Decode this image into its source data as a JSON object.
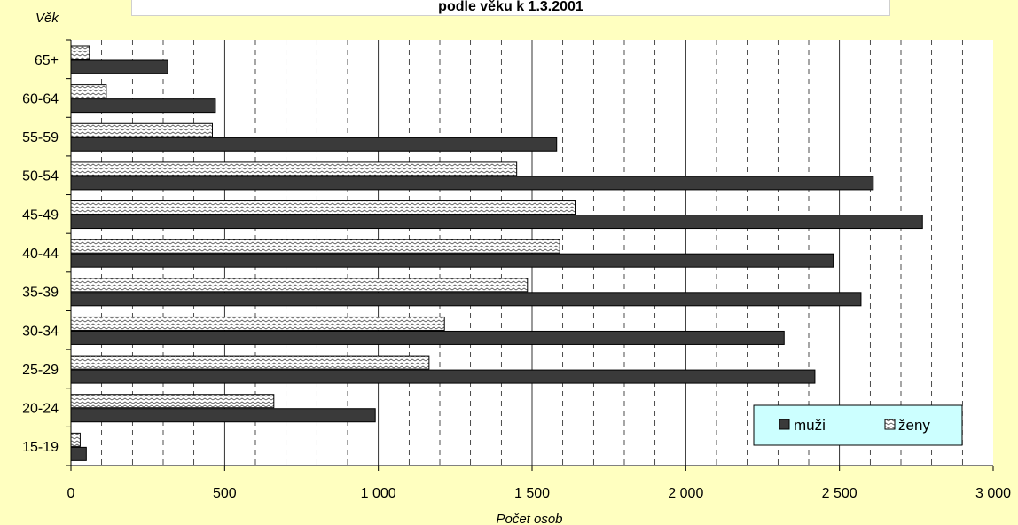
{
  "chart_data": {
    "type": "bar",
    "orientation": "horizontal",
    "title": "podle věku k 1.3.2001",
    "ylabel": "Věk",
    "xlabel": "Počet osob",
    "categories": [
      "65+",
      "60-64",
      "55-59",
      "50-54",
      "45-49",
      "40-44",
      "35-39",
      "30-34",
      "25-29",
      "20-24",
      "15-19"
    ],
    "series": [
      {
        "name": "muži",
        "values": [
          315,
          470,
          1580,
          2610,
          2770,
          2480,
          2570,
          2320,
          2420,
          990,
          50
        ],
        "color": "#3a3a3a"
      },
      {
        "name": "ženy",
        "values": [
          60,
          115,
          460,
          1450,
          1640,
          1590,
          1485,
          1215,
          1165,
          660,
          30
        ],
        "color": "#ffffff"
      }
    ],
    "xlim": [
      0,
      3000
    ],
    "xticks": [
      0,
      500,
      1000,
      1500,
      2000,
      2500,
      3000
    ],
    "xtick_labels": [
      "0",
      "500",
      "1 000",
      "1 500",
      "2 000",
      "2 500",
      "3 000"
    ],
    "grid": true,
    "legend_position": "bottom-right"
  },
  "colors": {
    "background": "#ffffc0",
    "plot_background": "#ffffff",
    "legend_background": "#ccffff"
  }
}
